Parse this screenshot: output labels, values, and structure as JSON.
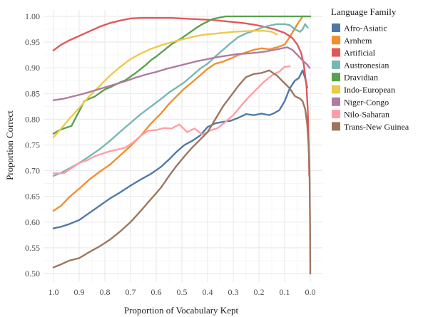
{
  "chart_data": {
    "type": "scatter",
    "xlabel": "Proportion of Vocabulary Kept",
    "ylabel": "Proportion Correct",
    "xlim": [
      1.0,
      0.0
    ],
    "ylim": [
      0.5,
      1.0
    ],
    "x_reversed": true,
    "xticks": [
      1.0,
      0.9,
      0.8,
      0.7,
      0.6,
      0.5,
      0.4,
      0.3,
      0.2,
      0.1,
      0.0
    ],
    "xtick_labels": [
      "1.0",
      "0.9",
      "0.8",
      "0.7",
      "0.6",
      "0.5",
      "0.4",
      "0.3",
      "0.2",
      "0.1",
      "0.0"
    ],
    "yticks": [
      0.5,
      0.55,
      0.6,
      0.65,
      0.7,
      0.75,
      0.8,
      0.85,
      0.9,
      0.95,
      1.0
    ],
    "ytick_labels": [
      "0.50",
      "0.55",
      "0.60",
      "0.65",
      "0.70",
      "0.75",
      "0.80",
      "0.85",
      "0.90",
      "0.95",
      "1.00"
    ],
    "grid": true,
    "background": "#ffffff",
    "grid_color": "#ebebeb",
    "legend_position": "right",
    "legend_title": "Language Family",
    "series": [
      {
        "name": "Afro-Asiatic",
        "color": "#4e79a7",
        "points": [
          [
            1.0,
            0.588
          ],
          [
            0.97,
            0.591
          ],
          [
            0.94,
            0.596
          ],
          [
            0.9,
            0.604
          ],
          [
            0.86,
            0.618
          ],
          [
            0.82,
            0.632
          ],
          [
            0.78,
            0.646
          ],
          [
            0.74,
            0.658
          ],
          [
            0.7,
            0.671
          ],
          [
            0.66,
            0.683
          ],
          [
            0.62,
            0.694
          ],
          [
            0.58,
            0.708
          ],
          [
            0.55,
            0.722
          ],
          [
            0.52,
            0.737
          ],
          [
            0.49,
            0.75
          ],
          [
            0.46,
            0.758
          ],
          [
            0.43,
            0.768
          ],
          [
            0.4,
            0.785
          ],
          [
            0.37,
            0.792
          ],
          [
            0.34,
            0.795
          ],
          [
            0.31,
            0.797
          ],
          [
            0.28,
            0.803
          ],
          [
            0.25,
            0.81
          ],
          [
            0.22,
            0.808
          ],
          [
            0.19,
            0.811
          ],
          [
            0.16,
            0.808
          ],
          [
            0.14,
            0.812
          ],
          [
            0.12,
            0.818
          ],
          [
            0.1,
            0.835
          ],
          [
            0.08,
            0.86
          ],
          [
            0.06,
            0.875
          ],
          [
            0.045,
            0.88
          ],
          [
            0.03,
            0.895
          ],
          [
            0.02,
            0.88
          ],
          [
            0.012,
            0.862
          ]
        ]
      },
      {
        "name": "Arnhem",
        "color": "#f28e2b",
        "points": [
          [
            1.0,
            0.622
          ],
          [
            0.97,
            0.632
          ],
          [
            0.94,
            0.648
          ],
          [
            0.9,
            0.665
          ],
          [
            0.86,
            0.683
          ],
          [
            0.82,
            0.698
          ],
          [
            0.78,
            0.712
          ],
          [
            0.74,
            0.73
          ],
          [
            0.7,
            0.748
          ],
          [
            0.66,
            0.768
          ],
          [
            0.62,
            0.792
          ],
          [
            0.58,
            0.812
          ],
          [
            0.55,
            0.83
          ],
          [
            0.52,
            0.845
          ],
          [
            0.49,
            0.86
          ],
          [
            0.46,
            0.872
          ],
          [
            0.43,
            0.885
          ],
          [
            0.4,
            0.898
          ],
          [
            0.37,
            0.908
          ],
          [
            0.34,
            0.912
          ],
          [
            0.31,
            0.918
          ],
          [
            0.28,
            0.925
          ],
          [
            0.25,
            0.93
          ],
          [
            0.22,
            0.935
          ],
          [
            0.19,
            0.938
          ],
          [
            0.16,
            0.936
          ],
          [
            0.13,
            0.94
          ],
          [
            0.1,
            0.945
          ],
          [
            0.08,
            0.96
          ],
          [
            0.05,
            0.985
          ],
          [
            0.03,
            1.0
          ],
          [
            0.015,
            1.0
          ]
        ]
      },
      {
        "name": "Artificial",
        "color": "#e15759",
        "points": [
          [
            1.0,
            0.934
          ],
          [
            0.97,
            0.945
          ],
          [
            0.94,
            0.953
          ],
          [
            0.9,
            0.962
          ],
          [
            0.86,
            0.971
          ],
          [
            0.82,
            0.98
          ],
          [
            0.78,
            0.987
          ],
          [
            0.74,
            0.992
          ],
          [
            0.7,
            0.996
          ],
          [
            0.66,
            0.997
          ],
          [
            0.62,
            0.997
          ],
          [
            0.58,
            0.997
          ],
          [
            0.54,
            0.997
          ],
          [
            0.5,
            0.996
          ],
          [
            0.46,
            0.995
          ],
          [
            0.42,
            0.994
          ],
          [
            0.38,
            0.993
          ],
          [
            0.34,
            0.991
          ],
          [
            0.3,
            0.989
          ],
          [
            0.26,
            0.987
          ],
          [
            0.22,
            0.984
          ],
          [
            0.18,
            0.98
          ],
          [
            0.14,
            0.975
          ],
          [
            0.1,
            0.968
          ],
          [
            0.07,
            0.958
          ],
          [
            0.05,
            0.945
          ],
          [
            0.035,
            0.928
          ],
          [
            0.025,
            0.905
          ],
          [
            0.015,
            0.865
          ],
          [
            0.01,
            0.82
          ],
          [
            0.006,
            0.75
          ],
          [
            0.004,
            0.69
          ]
        ]
      },
      {
        "name": "Austronesian",
        "color": "#76b7b2",
        "points": [
          [
            1.0,
            0.69
          ],
          [
            0.97,
            0.696
          ],
          [
            0.94,
            0.704
          ],
          [
            0.9,
            0.715
          ],
          [
            0.86,
            0.728
          ],
          [
            0.82,
            0.742
          ],
          [
            0.78,
            0.758
          ],
          [
            0.74,
            0.776
          ],
          [
            0.7,
            0.793
          ],
          [
            0.66,
            0.81
          ],
          [
            0.62,
            0.825
          ],
          [
            0.58,
            0.84
          ],
          [
            0.55,
            0.852
          ],
          [
            0.52,
            0.862
          ],
          [
            0.49,
            0.872
          ],
          [
            0.46,
            0.885
          ],
          [
            0.43,
            0.898
          ],
          [
            0.4,
            0.908
          ],
          [
            0.37,
            0.922
          ],
          [
            0.34,
            0.935
          ],
          [
            0.31,
            0.948
          ],
          [
            0.28,
            0.96
          ],
          [
            0.25,
            0.967
          ],
          [
            0.22,
            0.972
          ],
          [
            0.19,
            0.978
          ],
          [
            0.16,
            0.982
          ],
          [
            0.13,
            0.985
          ],
          [
            0.1,
            0.985
          ],
          [
            0.08,
            0.983
          ],
          [
            0.06,
            0.975
          ],
          [
            0.04,
            0.97
          ],
          [
            0.03,
            0.975
          ],
          [
            0.02,
            0.985
          ],
          [
            0.01,
            0.978
          ]
        ]
      },
      {
        "name": "Dravidian",
        "color": "#59a14f",
        "points": [
          [
            1.0,
            0.772
          ],
          [
            0.98,
            0.778
          ],
          [
            0.96,
            0.782
          ],
          [
            0.93,
            0.787
          ],
          [
            0.88,
            0.835
          ],
          [
            0.86,
            0.84
          ],
          [
            0.84,
            0.844
          ],
          [
            0.8,
            0.858
          ],
          [
            0.78,
            0.862
          ],
          [
            0.74,
            0.872
          ],
          [
            0.72,
            0.876
          ],
          [
            0.7,
            0.883
          ],
          [
            0.68,
            0.89
          ],
          [
            0.66,
            0.898
          ],
          [
            0.64,
            0.906
          ],
          [
            0.62,
            0.915
          ],
          [
            0.6,
            0.922
          ],
          [
            0.58,
            0.93
          ],
          [
            0.56,
            0.938
          ],
          [
            0.54,
            0.946
          ],
          [
            0.52,
            0.952
          ],
          [
            0.5,
            0.958
          ],
          [
            0.48,
            0.965
          ],
          [
            0.46,
            0.972
          ],
          [
            0.44,
            0.979
          ],
          [
            0.42,
            0.985
          ],
          [
            0.4,
            0.99
          ],
          [
            0.38,
            0.995
          ],
          [
            0.33,
            1.0
          ],
          [
            0.3,
            1.0
          ],
          [
            0.25,
            1.0
          ],
          [
            0.2,
            1.0
          ],
          [
            0.15,
            1.0
          ],
          [
            0.1,
            1.0
          ],
          [
            0.06,
            1.0
          ],
          [
            0.03,
            1.0
          ],
          [
            0.0,
            1.0
          ]
        ]
      },
      {
        "name": "Indo-European",
        "color": "#edc948",
        "points": [
          [
            1.0,
            0.765
          ],
          [
            0.97,
            0.782
          ],
          [
            0.94,
            0.8
          ],
          [
            0.9,
            0.822
          ],
          [
            0.86,
            0.845
          ],
          [
            0.82,
            0.865
          ],
          [
            0.78,
            0.885
          ],
          [
            0.74,
            0.902
          ],
          [
            0.7,
            0.917
          ],
          [
            0.66,
            0.928
          ],
          [
            0.62,
            0.937
          ],
          [
            0.58,
            0.944
          ],
          [
            0.54,
            0.95
          ],
          [
            0.5,
            0.955
          ],
          [
            0.46,
            0.96
          ],
          [
            0.42,
            0.964
          ],
          [
            0.38,
            0.966
          ],
          [
            0.34,
            0.968
          ],
          [
            0.3,
            0.97
          ],
          [
            0.26,
            0.971
          ],
          [
            0.22,
            0.972
          ],
          [
            0.18,
            0.972
          ],
          [
            0.15,
            0.97
          ],
          [
            0.13,
            0.965
          ]
        ]
      },
      {
        "name": "Niger-Congo",
        "color": "#b07aa1",
        "points": [
          [
            1.0,
            0.837
          ],
          [
            0.96,
            0.84
          ],
          [
            0.92,
            0.845
          ],
          [
            0.88,
            0.85
          ],
          [
            0.84,
            0.856
          ],
          [
            0.8,
            0.862
          ],
          [
            0.76,
            0.868
          ],
          [
            0.72,
            0.874
          ],
          [
            0.68,
            0.881
          ],
          [
            0.64,
            0.887
          ],
          [
            0.6,
            0.892
          ],
          [
            0.56,
            0.898
          ],
          [
            0.52,
            0.903
          ],
          [
            0.48,
            0.908
          ],
          [
            0.44,
            0.913
          ],
          [
            0.4,
            0.917
          ],
          [
            0.36,
            0.921
          ],
          [
            0.32,
            0.924
          ],
          [
            0.28,
            0.927
          ],
          [
            0.24,
            0.928
          ],
          [
            0.2,
            0.93
          ],
          [
            0.17,
            0.932
          ],
          [
            0.14,
            0.935
          ],
          [
            0.11,
            0.938
          ],
          [
            0.09,
            0.94
          ],
          [
            0.07,
            0.935
          ],
          [
            0.05,
            0.925
          ],
          [
            0.035,
            0.917
          ],
          [
            0.02,
            0.91
          ],
          [
            0.01,
            0.905
          ],
          [
            0.003,
            0.9
          ]
        ]
      },
      {
        "name": "Nilo-Saharan",
        "color": "#ff9da7",
        "points": [
          [
            1.0,
            0.695
          ],
          [
            0.96,
            0.695
          ],
          [
            0.93,
            0.705
          ],
          [
            0.9,
            0.715
          ],
          [
            0.87,
            0.72
          ],
          [
            0.84,
            0.728
          ],
          [
            0.81,
            0.733
          ],
          [
            0.78,
            0.738
          ],
          [
            0.75,
            0.741
          ],
          [
            0.72,
            0.745
          ],
          [
            0.69,
            0.755
          ],
          [
            0.66,
            0.768
          ],
          [
            0.63,
            0.778
          ],
          [
            0.6,
            0.779
          ],
          [
            0.57,
            0.783
          ],
          [
            0.54,
            0.782
          ],
          [
            0.51,
            0.79
          ],
          [
            0.48,
            0.775
          ],
          [
            0.45,
            0.782
          ],
          [
            0.42,
            0.77
          ],
          [
            0.39,
            0.778
          ],
          [
            0.36,
            0.783
          ],
          [
            0.33,
            0.795
          ],
          [
            0.3,
            0.808
          ],
          [
            0.27,
            0.826
          ],
          [
            0.24,
            0.843
          ],
          [
            0.21,
            0.858
          ],
          [
            0.18,
            0.873
          ],
          [
            0.15,
            0.885
          ],
          [
            0.12,
            0.893
          ],
          [
            0.1,
            0.902
          ],
          [
            0.08,
            0.903
          ]
        ]
      },
      {
        "name": "Trans-New Guinea",
        "color": "#9c755f",
        "points": [
          [
            1.0,
            0.512
          ],
          [
            0.97,
            0.518
          ],
          [
            0.94,
            0.525
          ],
          [
            0.9,
            0.53
          ],
          [
            0.86,
            0.542
          ],
          [
            0.82,
            0.553
          ],
          [
            0.78,
            0.566
          ],
          [
            0.74,
            0.582
          ],
          [
            0.7,
            0.6
          ],
          [
            0.66,
            0.622
          ],
          [
            0.62,
            0.645
          ],
          [
            0.58,
            0.668
          ],
          [
            0.55,
            0.69
          ],
          [
            0.52,
            0.71
          ],
          [
            0.49,
            0.728
          ],
          [
            0.46,
            0.745
          ],
          [
            0.43,
            0.76
          ],
          [
            0.4,
            0.775
          ],
          [
            0.37,
            0.8
          ],
          [
            0.34,
            0.825
          ],
          [
            0.31,
            0.845
          ],
          [
            0.28,
            0.865
          ],
          [
            0.25,
            0.882
          ],
          [
            0.22,
            0.888
          ],
          [
            0.19,
            0.89
          ],
          [
            0.16,
            0.895
          ],
          [
            0.13,
            0.885
          ],
          [
            0.1,
            0.87
          ],
          [
            0.08,
            0.86
          ],
          [
            0.06,
            0.845
          ],
          [
            0.04,
            0.84
          ],
          [
            0.03,
            0.835
          ],
          [
            0.02,
            0.82
          ],
          [
            0.012,
            0.79
          ],
          [
            0.008,
            0.76
          ],
          [
            0.005,
            0.73
          ],
          [
            0.003,
            0.7
          ],
          [
            0.002,
            0.65
          ],
          [
            0.001,
            0.6
          ],
          [
            0.0,
            0.5
          ]
        ]
      }
    ]
  }
}
